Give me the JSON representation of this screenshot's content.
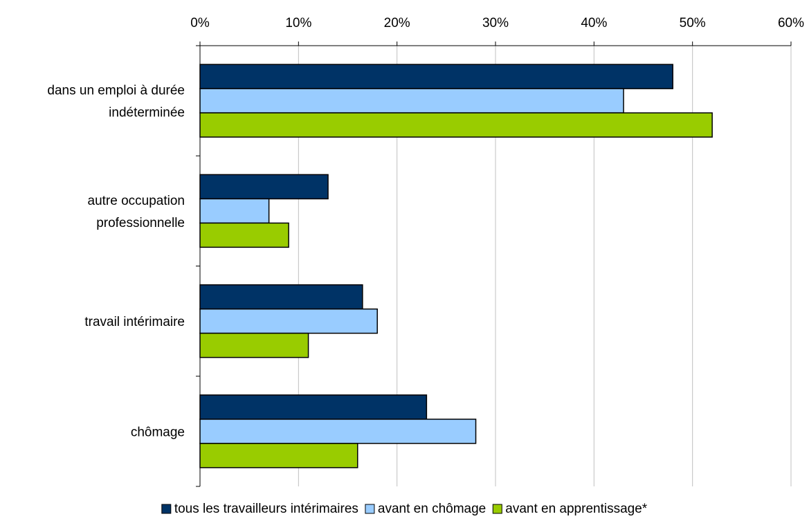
{
  "chart_data": {
    "type": "bar",
    "orientation": "horizontal",
    "categories": [
      [
        "dans un emploi à durée",
        "indéterminée"
      ],
      [
        "autre occupation",
        "professionnelle"
      ],
      [
        "travail intérimaire"
      ],
      [
        "chômage"
      ]
    ],
    "series": [
      {
        "name": "tous les travailleurs intérimaires",
        "color": "#003366",
        "values": [
          48,
          13,
          16.5,
          23
        ]
      },
      {
        "name": "avant en chômage",
        "color": "#99ccff",
        "values": [
          43,
          7,
          18,
          28
        ]
      },
      {
        "name": "avant en apprentissage*",
        "color": "#99cc00",
        "values": [
          52,
          9,
          11,
          16
        ]
      }
    ],
    "xlim": [
      0,
      60
    ],
    "x_ticks": [
      0,
      10,
      20,
      30,
      40,
      50,
      60
    ],
    "x_tick_labels": [
      "0%",
      "10%",
      "20%",
      "30%",
      "40%",
      "50%",
      "60%"
    ],
    "x_axis_position": "top",
    "grid": "vertical",
    "legend_position": "bottom"
  }
}
